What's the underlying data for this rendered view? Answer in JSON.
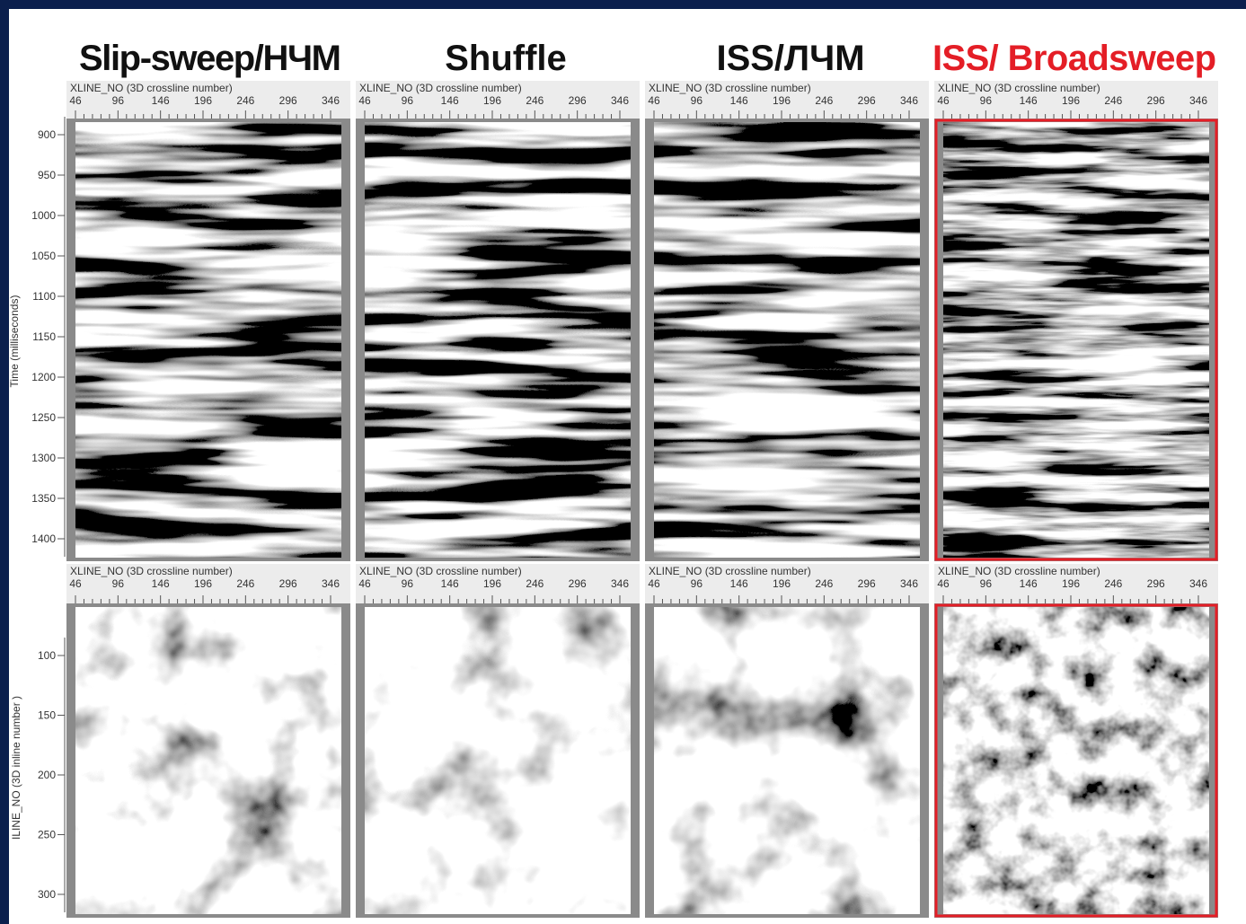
{
  "titles": [
    "Slip-sweep/НЧМ",
    "Shuffle",
    "ISS/ЛЧМ",
    "ISS/ Broadsweep"
  ],
  "x_axis": {
    "label": "XLINE_NO (3D crossline number)",
    "ticks": [
      "46",
      "96",
      "146",
      "196",
      "246",
      "296",
      "346"
    ]
  },
  "time_axis": {
    "label": "Time (milliseconds)",
    "ticks": [
      "900",
      "950",
      "1000",
      "1050",
      "1100",
      "1150",
      "1200",
      "1250",
      "1300",
      "1350",
      "1400"
    ]
  },
  "inline_axis": {
    "label": "ILINE_NO (3D inline number )",
    "ticks": [
      "100",
      "150",
      "200",
      "250",
      "300"
    ]
  }
}
